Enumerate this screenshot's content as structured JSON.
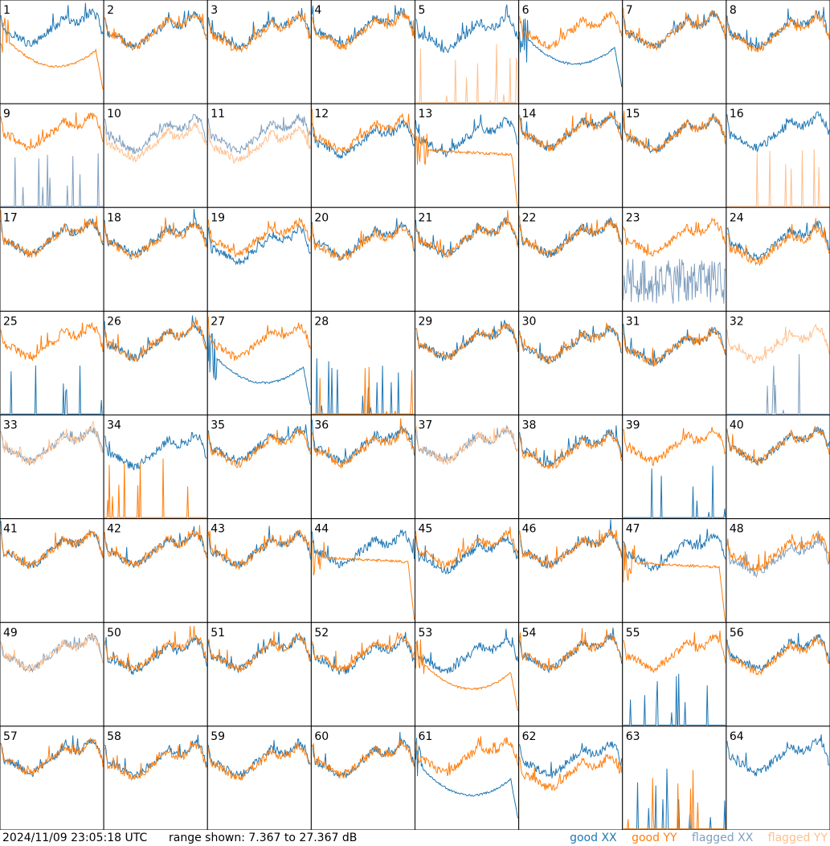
{
  "footer": {
    "timestamp": "2024/11/09 23:05:18 UTC",
    "range_label": "range shown: 7.367 to 27.367 dB"
  },
  "colors": {
    "good_xx": "#1f77b4",
    "good_yy": "#ff7f0e",
    "flagged_xx": "#7f9fbf",
    "flagged_yy": "#ffbf8c"
  },
  "chart_data": {
    "type": "line",
    "title": "",
    "layout": "8x8 small multiples",
    "ylim": [
      7.367,
      27.367
    ],
    "yunit": "dB",
    "legend": [
      {
        "key": "good_xx",
        "prefix": "good",
        "label": "XX"
      },
      {
        "key": "good_yy",
        "prefix": "good",
        "label": "YY"
      },
      {
        "key": "flagged_xx",
        "prefix": "flagged",
        "label": "XX"
      },
      {
        "key": "flagged_yy",
        "prefix": "flagged",
        "label": "YY"
      }
    ],
    "panels": [
      {
        "label": "1",
        "xx": {
          "shape": "normal",
          "base": 21.5,
          "flag": false
        },
        "yy": {
          "shape": "dip",
          "base": 16.5,
          "flag": false
        }
      },
      {
        "label": "2",
        "xx": {
          "shape": "normal",
          "base": 21.0,
          "flag": false
        },
        "yy": {
          "shape": "normal",
          "base": 21.0,
          "flag": false
        }
      },
      {
        "label": "3",
        "xx": {
          "shape": "normal",
          "base": 21.0,
          "flag": false
        },
        "yy": {
          "shape": "normal",
          "base": 20.5,
          "flag": false
        }
      },
      {
        "label": "4",
        "xx": {
          "shape": "normal",
          "base": 21.5,
          "flag": false
        },
        "yy": {
          "shape": "normal",
          "base": 21.0,
          "flag": false
        }
      },
      {
        "label": "5",
        "xx": {
          "shape": "normal",
          "base": 20.5,
          "flag": false
        },
        "yy": {
          "shape": "zero",
          "base": 7.4,
          "flag": true
        }
      },
      {
        "label": "6",
        "xx": {
          "shape": "dip",
          "base": 17.0,
          "flag": false
        },
        "yy": {
          "shape": "normal",
          "base": 21.0,
          "flag": false
        }
      },
      {
        "label": "7",
        "xx": {
          "shape": "normal",
          "base": 21.0,
          "flag": false
        },
        "yy": {
          "shape": "normal",
          "base": 21.0,
          "flag": false
        }
      },
      {
        "label": "8",
        "xx": {
          "shape": "normal",
          "base": 21.0,
          "flag": false
        },
        "yy": {
          "shape": "normal",
          "base": 20.5,
          "flag": false
        }
      },
      {
        "label": "9",
        "xx": {
          "shape": "zero",
          "base": 7.4,
          "flag": true
        },
        "yy": {
          "shape": "normal",
          "base": 21.5,
          "flag": false
        }
      },
      {
        "label": "10",
        "xx": {
          "shape": "normal",
          "base": 21.0,
          "flag": true
        },
        "yy": {
          "shape": "normal",
          "base": 19.5,
          "flag": true
        }
      },
      {
        "label": "11",
        "xx": {
          "shape": "normal",
          "base": 21.0,
          "flag": true
        },
        "yy": {
          "shape": "normal",
          "base": 19.0,
          "flag": true
        }
      },
      {
        "label": "12",
        "xx": {
          "shape": "normal",
          "base": 20.0,
          "flag": false
        },
        "yy": {
          "shape": "normal",
          "base": 21.0,
          "flag": false
        }
      },
      {
        "label": "13",
        "xx": {
          "shape": "normal",
          "base": 20.5,
          "flag": false
        },
        "yy": {
          "shape": "drop",
          "base": 18.5,
          "flag": false
        }
      },
      {
        "label": "14",
        "xx": {
          "shape": "normal",
          "base": 21.5,
          "flag": false
        },
        "yy": {
          "shape": "normal",
          "base": 21.5,
          "flag": false
        }
      },
      {
        "label": "15",
        "xx": {
          "shape": "normal",
          "base": 21.0,
          "flag": false
        },
        "yy": {
          "shape": "normal",
          "base": 21.0,
          "flag": false
        }
      },
      {
        "label": "16",
        "xx": {
          "shape": "normal",
          "base": 21.5,
          "flag": false
        },
        "yy": {
          "shape": "zero",
          "base": 7.4,
          "flag": true
        }
      },
      {
        "label": "17",
        "xx": {
          "shape": "normal",
          "base": 21.0,
          "flag": false
        },
        "yy": {
          "shape": "normal",
          "base": 21.0,
          "flag": false
        }
      },
      {
        "label": "18",
        "xx": {
          "shape": "normal",
          "base": 21.0,
          "flag": false
        },
        "yy": {
          "shape": "normal",
          "base": 20.5,
          "flag": false
        }
      },
      {
        "label": "19",
        "xx": {
          "shape": "normal",
          "base": 19.5,
          "flag": false
        },
        "yy": {
          "shape": "normal",
          "base": 21.0,
          "flag": false
        }
      },
      {
        "label": "20",
        "xx": {
          "shape": "normal",
          "base": 20.5,
          "flag": false
        },
        "yy": {
          "shape": "normal",
          "base": 20.0,
          "flag": false
        }
      },
      {
        "label": "21",
        "xx": {
          "shape": "normal",
          "base": 21.0,
          "flag": false
        },
        "yy": {
          "shape": "normal",
          "base": 21.0,
          "flag": false
        }
      },
      {
        "label": "22",
        "xx": {
          "shape": "normal",
          "base": 21.0,
          "flag": false
        },
        "yy": {
          "shape": "normal",
          "base": 21.0,
          "flag": false
        }
      },
      {
        "label": "23",
        "xx": {
          "shape": "noisy",
          "base": 13.0,
          "flag": true
        },
        "yy": {
          "shape": "normal",
          "base": 21.0,
          "flag": false
        }
      },
      {
        "label": "24",
        "xx": {
          "shape": "normal",
          "base": 20.5,
          "flag": false
        },
        "yy": {
          "shape": "normal",
          "base": 19.5,
          "flag": false
        }
      },
      {
        "label": "25",
        "xx": {
          "shape": "zero",
          "base": 7.4,
          "flag": false
        },
        "yy": {
          "shape": "normal",
          "base": 21.0,
          "flag": false
        }
      },
      {
        "label": "26",
        "xx": {
          "shape": "normal",
          "base": 21.0,
          "flag": false
        },
        "yy": {
          "shape": "normal",
          "base": 21.0,
          "flag": false
        }
      },
      {
        "label": "27",
        "xx": {
          "shape": "dip",
          "base": 15.5,
          "flag": false
        },
        "yy": {
          "shape": "normal",
          "base": 21.0,
          "flag": false
        }
      },
      {
        "label": "28",
        "xx": {
          "shape": "zero",
          "base": 7.4,
          "flag": false
        },
        "yy": {
          "shape": "zero",
          "base": 7.4,
          "flag": false
        }
      },
      {
        "label": "29",
        "xx": {
          "shape": "normal",
          "base": 21.0,
          "flag": false
        },
        "yy": {
          "shape": "normal",
          "base": 21.0,
          "flag": false
        }
      },
      {
        "label": "30",
        "xx": {
          "shape": "normal",
          "base": 20.5,
          "flag": false
        },
        "yy": {
          "shape": "normal",
          "base": 20.5,
          "flag": false
        }
      },
      {
        "label": "31",
        "xx": {
          "shape": "normal",
          "base": 20.0,
          "flag": false
        },
        "yy": {
          "shape": "normal",
          "base": 20.0,
          "flag": false
        }
      },
      {
        "label": "32",
        "xx": {
          "shape": "zero",
          "base": 7.4,
          "flag": true
        },
        "yy": {
          "shape": "normal",
          "base": 20.5,
          "flag": true
        }
      },
      {
        "label": "33",
        "xx": {
          "shape": "normal",
          "base": 21.0,
          "flag": true
        },
        "yy": {
          "shape": "normal",
          "base": 21.0,
          "flag": true
        }
      },
      {
        "label": "34",
        "xx": {
          "shape": "normal",
          "base": 20.0,
          "flag": false
        },
        "yy": {
          "shape": "zero",
          "base": 7.4,
          "flag": false
        }
      },
      {
        "label": "35",
        "xx": {
          "shape": "normal",
          "base": 21.0,
          "flag": false
        },
        "yy": {
          "shape": "normal",
          "base": 20.5,
          "flag": false
        }
      },
      {
        "label": "36",
        "xx": {
          "shape": "normal",
          "base": 21.0,
          "flag": false
        },
        "yy": {
          "shape": "normal",
          "base": 20.5,
          "flag": false
        }
      },
      {
        "label": "37",
        "xx": {
          "shape": "normal",
          "base": 21.0,
          "flag": true
        },
        "yy": {
          "shape": "normal",
          "base": 21.0,
          "flag": true
        }
      },
      {
        "label": "38",
        "xx": {
          "shape": "normal",
          "base": 20.5,
          "flag": false
        },
        "yy": {
          "shape": "normal",
          "base": 20.0,
          "flag": false
        }
      },
      {
        "label": "39",
        "xx": {
          "shape": "zero",
          "base": 7.4,
          "flag": false
        },
        "yy": {
          "shape": "normal",
          "base": 21.0,
          "flag": false
        }
      },
      {
        "label": "40",
        "xx": {
          "shape": "normal",
          "base": 21.0,
          "flag": false
        },
        "yy": {
          "shape": "normal",
          "base": 21.0,
          "flag": false
        }
      },
      {
        "label": "41",
        "xx": {
          "shape": "normal",
          "base": 21.0,
          "flag": false
        },
        "yy": {
          "shape": "normal",
          "base": 21.0,
          "flag": false
        }
      },
      {
        "label": "42",
        "xx": {
          "shape": "normal",
          "base": 21.0,
          "flag": false
        },
        "yy": {
          "shape": "normal",
          "base": 21.0,
          "flag": false
        }
      },
      {
        "label": "43",
        "xx": {
          "shape": "normal",
          "base": 21.0,
          "flag": false
        },
        "yy": {
          "shape": "normal",
          "base": 21.0,
          "flag": false
        }
      },
      {
        "label": "44",
        "xx": {
          "shape": "normal",
          "base": 21.0,
          "flag": false
        },
        "yy": {
          "shape": "drop",
          "base": 20.0,
          "flag": false
        }
      },
      {
        "label": "45",
        "xx": {
          "shape": "normal",
          "base": 20.0,
          "flag": false
        },
        "yy": {
          "shape": "normal",
          "base": 21.0,
          "flag": false
        }
      },
      {
        "label": "46",
        "xx": {
          "shape": "normal",
          "base": 21.0,
          "flag": false
        },
        "yy": {
          "shape": "normal",
          "base": 21.0,
          "flag": false
        }
      },
      {
        "label": "47",
        "xx": {
          "shape": "normal",
          "base": 20.5,
          "flag": false
        },
        "yy": {
          "shape": "drop",
          "base": 19.0,
          "flag": false
        }
      },
      {
        "label": "48",
        "xx": {
          "shape": "normal",
          "base": 19.5,
          "flag": true
        },
        "yy": {
          "shape": "normal",
          "base": 20.5,
          "flag": false
        }
      },
      {
        "label": "49",
        "xx": {
          "shape": "normal",
          "base": 21.0,
          "flag": true
        },
        "yy": {
          "shape": "normal",
          "base": 21.0,
          "flag": true
        }
      },
      {
        "label": "50",
        "xx": {
          "shape": "normal",
          "base": 20.5,
          "flag": false
        },
        "yy": {
          "shape": "normal",
          "base": 21.0,
          "flag": false
        }
      },
      {
        "label": "51",
        "xx": {
          "shape": "normal",
          "base": 21.0,
          "flag": false
        },
        "yy": {
          "shape": "normal",
          "base": 21.0,
          "flag": false
        }
      },
      {
        "label": "52",
        "xx": {
          "shape": "normal",
          "base": 20.5,
          "flag": false
        },
        "yy": {
          "shape": "normal",
          "base": 21.0,
          "flag": false
        }
      },
      {
        "label": "53",
        "xx": {
          "shape": "normal",
          "base": 20.5,
          "flag": false
        },
        "yy": {
          "shape": "dip",
          "base": 16.5,
          "flag": false
        }
      },
      {
        "label": "54",
        "xx": {
          "shape": "normal",
          "base": 21.0,
          "flag": false
        },
        "yy": {
          "shape": "normal",
          "base": 21.0,
          "flag": false
        }
      },
      {
        "label": "55",
        "xx": {
          "shape": "zero",
          "base": 7.4,
          "flag": false
        },
        "yy": {
          "shape": "normal",
          "base": 21.0,
          "flag": false
        }
      },
      {
        "label": "56",
        "xx": {
          "shape": "normal",
          "base": 21.0,
          "flag": false
        },
        "yy": {
          "shape": "normal",
          "base": 20.5,
          "flag": false
        }
      },
      {
        "label": "57",
        "xx": {
          "shape": "normal",
          "base": 21.0,
          "flag": false
        },
        "yy": {
          "shape": "normal",
          "base": 21.0,
          "flag": false
        }
      },
      {
        "label": "58",
        "xx": {
          "shape": "normal",
          "base": 20.5,
          "flag": false
        },
        "yy": {
          "shape": "normal",
          "base": 20.0,
          "flag": false
        }
      },
      {
        "label": "59",
        "xx": {
          "shape": "normal",
          "base": 20.5,
          "flag": false
        },
        "yy": {
          "shape": "normal",
          "base": 20.0,
          "flag": false
        }
      },
      {
        "label": "60",
        "xx": {
          "shape": "normal",
          "base": 20.5,
          "flag": false
        },
        "yy": {
          "shape": "normal",
          "base": 20.5,
          "flag": false
        }
      },
      {
        "label": "61",
        "xx": {
          "shape": "dip",
          "base": 16.0,
          "flag": false
        },
        "yy": {
          "shape": "normal",
          "base": 21.0,
          "flag": false
        }
      },
      {
        "label": "62",
        "xx": {
          "shape": "normal",
          "base": 20.5,
          "flag": false
        },
        "yy": {
          "shape": "normal",
          "base": 18.0,
          "flag": false
        }
      },
      {
        "label": "63",
        "xx": {
          "shape": "zero",
          "base": 7.4,
          "flag": false
        },
        "yy": {
          "shape": "zero",
          "base": 7.4,
          "flag": false
        }
      },
      {
        "label": "64",
        "xx": {
          "shape": "normal",
          "base": 21.0,
          "flag": false
        },
        "yy": {
          "shape": "none",
          "base": 7.4,
          "flag": false
        }
      }
    ]
  }
}
